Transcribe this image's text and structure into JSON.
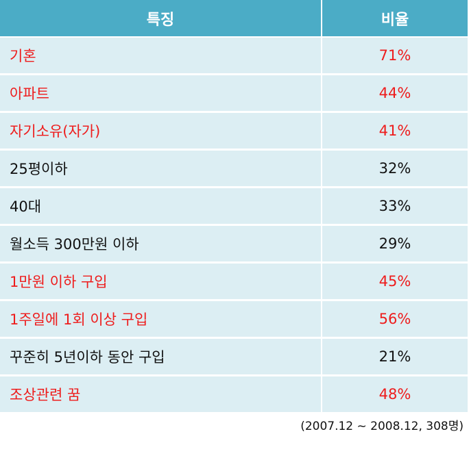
{
  "header": {
    "feature_label": "특징",
    "ratio_label": "비율"
  },
  "rows": [
    {
      "feature": "기혼",
      "ratio": "71%",
      "highlight": true
    },
    {
      "feature": "아파트",
      "ratio": "44%",
      "highlight": true
    },
    {
      "feature": "자기소유(자가)",
      "ratio": "41%",
      "highlight": true
    },
    {
      "feature": "25평이하",
      "ratio": "32%",
      "highlight": false
    },
    {
      "feature": "40대",
      "ratio": "33%",
      "highlight": false
    },
    {
      "feature": "월소득 300만원 이하",
      "ratio": "29%",
      "highlight": false
    },
    {
      "feature": "1만원 이하 구입",
      "ratio": "45%",
      "highlight": true
    },
    {
      "feature": "1주일에 1회 이상 구입",
      "ratio": "56%",
      "highlight": true
    },
    {
      "feature": "꾸준히 5년이하 동안 구입",
      "ratio": "21%",
      "highlight": false
    },
    {
      "feature": "조상관련 꿈",
      "ratio": "48%",
      "highlight": true
    }
  ],
  "footnote": "(2007.12 ~ 2008.12, 308명)",
  "colors": {
    "header_bg": "#4bacc6",
    "row_bg": "#dceef3",
    "highlight_text": "#ee1c1c",
    "normal_text": "#111111"
  }
}
